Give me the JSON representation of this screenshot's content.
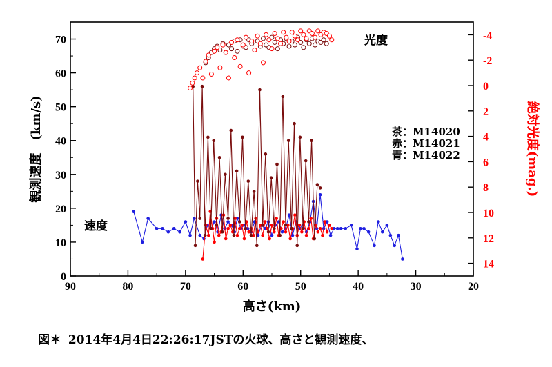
{
  "chart_data": {
    "type": "scatter",
    "xlabel": "高さ(km)",
    "ylabel_left": "観測速度　(km/s)",
    "ylabel_right": "絶対光度(mag.)",
    "x_axis": {
      "range": [
        90,
        20
      ],
      "ticks": [
        90,
        80,
        70,
        60,
        50,
        40,
        30,
        20
      ]
    },
    "y_left_axis": {
      "range": [
        0,
        75
      ],
      "ticks": [
        0,
        10,
        20,
        30,
        40,
        50,
        60,
        70
      ]
    },
    "y_right_axis": {
      "range": [
        15,
        -5
      ],
      "ticks": [
        -4,
        -2,
        0,
        2,
        4,
        6,
        8,
        10,
        12,
        14
      ]
    },
    "annotations": {
      "luminosity_label": "光度",
      "velocity_label": "速度"
    },
    "legend": [
      {
        "label": "茶：M14020",
        "color": "#7a0d0d"
      },
      {
        "label": "赤：M14021",
        "color": "#ff0000"
      },
      {
        "label": "青：M14022",
        "color": "#1f1fe0"
      }
    ],
    "series": [
      {
        "name": "M14022 velocity",
        "axis": "left",
        "color": "#1f1fe0",
        "style": "line-markers",
        "x": [
          79,
          77.5,
          76.5,
          75,
          74,
          73,
          72,
          71,
          70,
          69.2,
          68.5,
          67.5,
          66.8,
          66.2,
          65.5,
          65,
          64.4,
          63.8,
          63.2,
          62.6,
          62,
          61.5,
          61,
          60.4,
          59.8,
          59.2,
          58.6,
          58,
          57.4,
          56.8,
          56.2,
          55.6,
          55,
          54.4,
          53.8,
          53.2,
          52.6,
          52,
          51.4,
          50.8,
          50.2,
          49.6,
          49,
          48.4,
          47.8,
          47.2,
          46.6,
          46,
          45.4,
          44.8,
          44.2,
          43.6,
          43,
          42.2,
          41.2,
          40.2,
          39.6,
          39,
          38.2,
          37.2,
          36.5,
          35.8,
          35,
          34.4,
          33.7,
          33,
          32.3
        ],
        "y": [
          19,
          10,
          17,
          14,
          14,
          13,
          14,
          13,
          16,
          12,
          17,
          12,
          11,
          15,
          14,
          16,
          13,
          18,
          14,
          16,
          15,
          13,
          17,
          14,
          15,
          14,
          13,
          16,
          12,
          15,
          14,
          16,
          12,
          15,
          16,
          13,
          14,
          18,
          12,
          16,
          14,
          15,
          13,
          16,
          22,
          14,
          24,
          14,
          16,
          12,
          14,
          14,
          14,
          14,
          15,
          8,
          14,
          14,
          13,
          9,
          16,
          13,
          15,
          12,
          9,
          12,
          5
        ]
      },
      {
        "name": "M14021 velocity",
        "axis": "left",
        "color": "#ff0000",
        "style": "line-markers",
        "x": [
          67,
          66.5,
          66,
          65.7,
          65.3,
          65,
          64.6,
          64.2,
          63.8,
          63.4,
          63,
          62.6,
          62.2,
          61.8,
          61.4,
          61,
          60.6,
          60.2,
          59.8,
          59.4,
          59,
          58.6,
          58.2,
          57.8,
          57.4,
          57,
          56.6,
          56.2,
          55.8,
          55.4,
          55,
          54.6,
          54.2,
          53.8,
          53.4,
          53,
          52.6,
          52.2,
          51.8,
          51.4,
          51,
          50.6,
          50.2,
          49.8,
          49.4,
          49,
          48.6,
          48.2,
          47.8,
          47.4,
          47,
          46.6,
          46.2,
          45.8,
          45.4,
          45,
          44.6
        ],
        "y": [
          5,
          15,
          12,
          19,
          14,
          10,
          17,
          12,
          13,
          18,
          11,
          14,
          15,
          13,
          17,
          12,
          14,
          15,
          11,
          16,
          13,
          14,
          12,
          17,
          13,
          15,
          12,
          16,
          14,
          11,
          15,
          13,
          17,
          12,
          14,
          16,
          13,
          15,
          11,
          14,
          18,
          12,
          15,
          13,
          16,
          12,
          14,
          17,
          11,
          15,
          13,
          14,
          12,
          16,
          13,
          15,
          14
        ]
      },
      {
        "name": "M14020 velocity",
        "axis": "left",
        "color": "#7a0d0d",
        "style": "line-markers",
        "x": [
          68.7,
          68.3,
          67.9,
          67.5,
          67.1,
          66.6,
          66.1,
          65.6,
          65.1,
          64.6,
          64.1,
          63.6,
          63.1,
          62.6,
          62.1,
          61.6,
          61.1,
          60.6,
          60.1,
          59.6,
          59.1,
          58.6,
          58.1,
          57.6,
          57.1,
          56.6,
          56.1,
          55.6,
          55.1,
          54.6,
          54.1,
          53.6,
          53.1,
          52.6,
          52.1,
          51.6,
          51.1,
          50.6,
          50.1,
          49.6,
          49.1,
          48.6,
          48.1,
          47.6,
          47.1,
          46.6
        ],
        "y": [
          56,
          9,
          28,
          17,
          56,
          12,
          41,
          14,
          40,
          15,
          35,
          13,
          30,
          17,
          43,
          12,
          31,
          16,
          41,
          14,
          28,
          12,
          25,
          9,
          55,
          15,
          36,
          13,
          29,
          14,
          33,
          12,
          53,
          15,
          40,
          14,
          45,
          9,
          41,
          14,
          34,
          16,
          40,
          11,
          27,
          26
        ]
      },
      {
        "name": "M14020 luminosity",
        "axis": "right",
        "color": "#7a0d0d",
        "style": "open-circles",
        "x": [
          66.5,
          66,
          65.5,
          65,
          64.5,
          64,
          63.5,
          63,
          62.5,
          62,
          61.5,
          61,
          60.5,
          60,
          59.5,
          59,
          58.5,
          58,
          57.5,
          57,
          56.5,
          56,
          55.5,
          55,
          54.5,
          54,
          53.5,
          53,
          52.5,
          52,
          51.5,
          51,
          50.5,
          50,
          49.5,
          49,
          48.5,
          48,
          47.5,
          47,
          46.5,
          46,
          45.5
        ],
        "y": [
          -1.8,
          -2.2,
          -2.6,
          -2.9,
          -3.1,
          -2.8,
          -3.3,
          -2.6,
          -3.2,
          -2.9,
          -3.5,
          -2.7,
          -3.6,
          -3.1,
          -3.0,
          -3.6,
          -3.3,
          -2.8,
          -3.5,
          -3.1,
          -3.7,
          -3.2,
          -3.0,
          -3.8,
          -3.4,
          -2.9,
          -3.6,
          -3.3,
          -3.7,
          -3.1,
          -3.5,
          -3.2,
          -3.8,
          -3.4,
          -3.0,
          -3.6,
          -3.3,
          -3.7,
          -3.2,
          -3.5,
          -3.4,
          -3.6,
          -3.3
        ]
      },
      {
        "name": "M14021 luminosity",
        "axis": "right",
        "color": "#ff0000",
        "style": "open-circles",
        "x": [
          69.2,
          68.8,
          68.4,
          68,
          67.5,
          67,
          66.5,
          66,
          65.5,
          65,
          64.5,
          64,
          63.5,
          63,
          62.5,
          62,
          61.5,
          61,
          60.5,
          60,
          59.5,
          59,
          58.5,
          58,
          57.5,
          57,
          56.5,
          56,
          55.5,
          55,
          54.5,
          54,
          53.5,
          53,
          52.5,
          52,
          51.5,
          51,
          50.5,
          50,
          49.5,
          49,
          48.5,
          48,
          47.5,
          47,
          46.5,
          46,
          45.5,
          45,
          44.6
        ],
        "y": [
          0.2,
          -0.2,
          -0.6,
          -1.0,
          -1.4,
          -0.6,
          -1.9,
          -2.4,
          -0.9,
          -2.7,
          -3.0,
          -1.4,
          -3.2,
          -2.6,
          -0.6,
          -3.4,
          -2.2,
          -3.6,
          -1.5,
          -3.2,
          -3.8,
          -1.0,
          -3.5,
          -2.8,
          -3.9,
          -3.3,
          -1.8,
          -4.0,
          -3.6,
          -2.9,
          -4.1,
          -3.7,
          -3.3,
          -4.2,
          -3.8,
          -3.5,
          -4.2,
          -3.9,
          -3.6,
          -4.3,
          -4.0,
          -3.7,
          -4.3,
          -4.1,
          -3.8,
          -4.3,
          -4.0,
          -4.2,
          -4.1,
          -3.9,
          -3.6
        ]
      }
    ]
  },
  "caption": {
    "figure_label": "図＊",
    "text": "2014年4月4日22:26:17JSTの火球、高さと観測速度、"
  }
}
